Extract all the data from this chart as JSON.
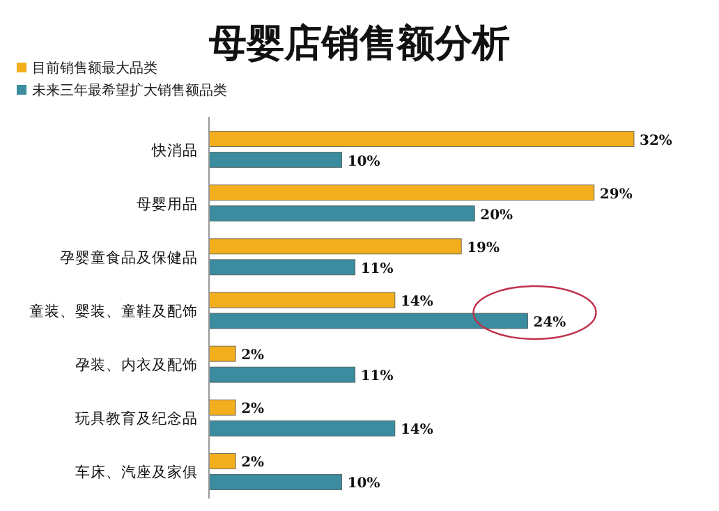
{
  "chart_data": {
    "type": "bar",
    "orientation": "horizontal",
    "title": "母婴店销售额分析",
    "legend": "top left",
    "categories": [
      "快消品",
      "母婴用品",
      "孕婴童食品及保健品",
      "童装、婴装、童鞋及配饰",
      "孕装、内衣及配饰",
      "玩具教育及纪念品",
      "车床、汽座及家俱"
    ],
    "series": [
      {
        "name": "目前销售额最大品类",
        "color": "#f2ae1c",
        "values": [
          32,
          29,
          19,
          14,
          2,
          2,
          2
        ],
        "value_labels": [
          "32%",
          "29%",
          "19%",
          "14%",
          "2%",
          "2%",
          "2%"
        ]
      },
      {
        "name": "未来三年最希望扩大销售额品类",
        "color": "#3a8c9e",
        "values": [
          10,
          20,
          11,
          24,
          11,
          14,
          10
        ],
        "value_labels": [
          "10%",
          "20%",
          "11%",
          "24%",
          "11%",
          "14%",
          "10%"
        ]
      }
    ]
  }
}
